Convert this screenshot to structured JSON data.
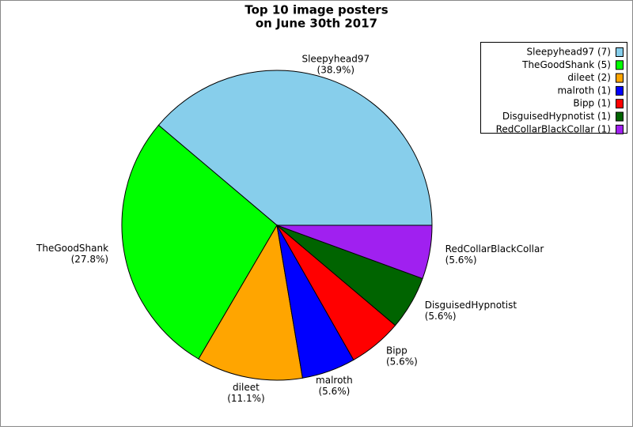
{
  "chart_data": {
    "type": "pie",
    "title": [
      "Top 10 image posters",
      "on June 30th 2017"
    ],
    "categories": [
      "Sleepyhead97",
      "TheGoodShank",
      "dileet",
      "malroth",
      "Bipp",
      "DisguisedHypnotist",
      "RedCollarBlackCollar"
    ],
    "values": [
      38.9,
      27.8,
      11.1,
      5.6,
      5.6,
      5.6,
      5.6
    ],
    "value_labels": [
      "(38.9%)",
      "(27.8%)",
      "(11.1%)",
      "(5.6%)",
      "(5.6%)",
      "(5.6%)",
      "(5.6%)"
    ],
    "colors": [
      "#87ceeb",
      "#00ff00",
      "#ffa500",
      "#0000ff",
      "#ff0000",
      "#006400",
      "#a020f0"
    ],
    "legend_labels": [
      "Sleepyhead97 (7)",
      "TheGoodShank (5)",
      "dileet (2)",
      "malroth (1)",
      "Bipp (1)",
      "DisguisedHypnotist (1)",
      "RedCollarBlackCollar (1)"
    ],
    "legend": "upper right"
  }
}
